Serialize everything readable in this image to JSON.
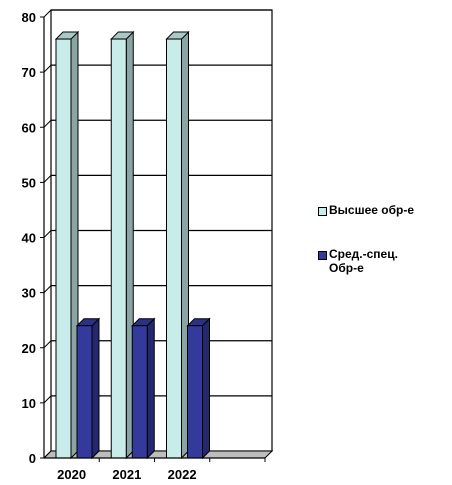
{
  "chart_data": {
    "type": "bar",
    "title": "",
    "xlabel": "",
    "ylabel": "",
    "categories": [
      "2020",
      "2021",
      "2022",
      ""
    ],
    "series": [
      {
        "name": "Высшее обр-е",
        "values": [
          76,
          76,
          76,
          null
        ],
        "color": "#c7ecea"
      },
      {
        "name": "Сред.-спец.\nОбр-е",
        "values": [
          24,
          24,
          24,
          null
        ],
        "color": "#343a9c"
      }
    ],
    "ylim": [
      0,
      80
    ],
    "yticks": [
      "0",
      "10",
      "20",
      "30",
      "40",
      "50",
      "60",
      "70",
      "80"
    ],
    "grid": true,
    "style": "3d",
    "legend_position": "right"
  }
}
